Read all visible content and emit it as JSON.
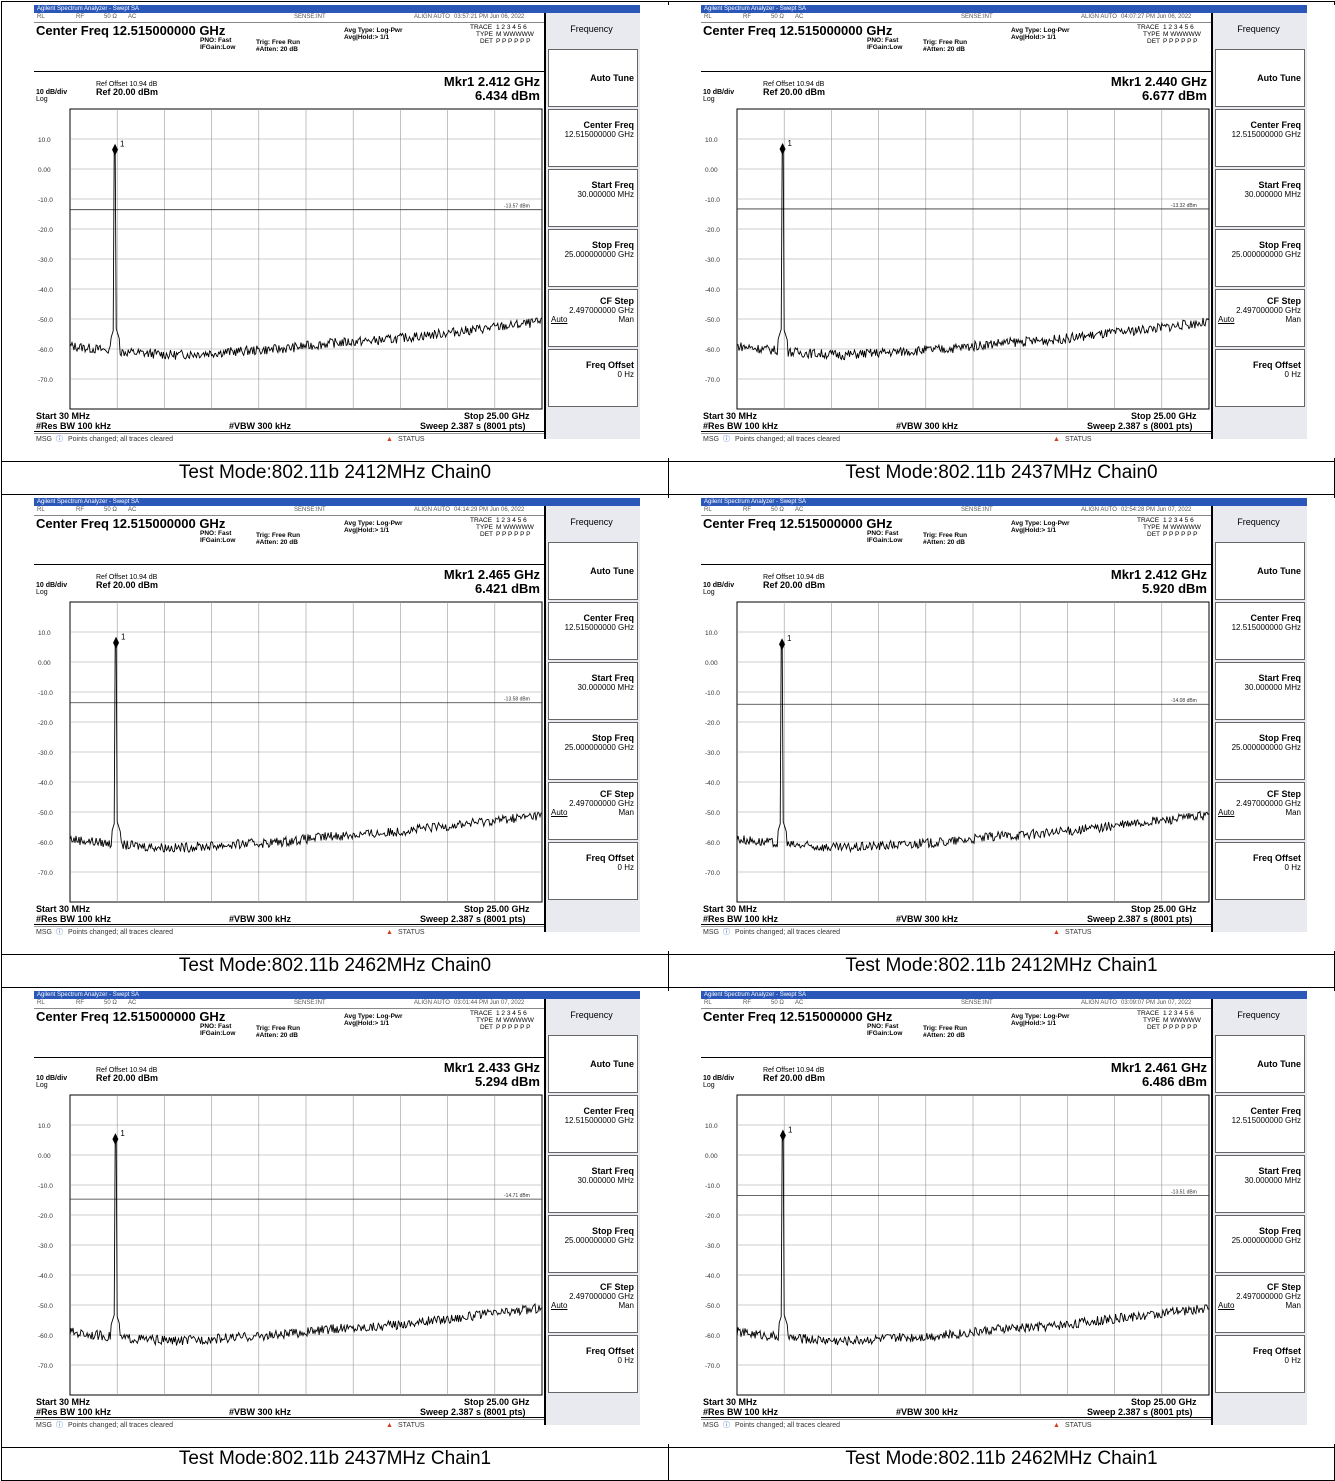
{
  "window_title": "Agilent Spectrum Analyzer - Swept SA",
  "status": {
    "rl": "RL",
    "rf": "RF",
    "impedance": "50 Ω",
    "coupling": "AC",
    "sense": "SENSE:INT",
    "align": "ALIGN AUTO"
  },
  "center_freq": "Center Freq 12.515000000 GHz",
  "pno": "PNO: Fast",
  "ifgain": "IFGain:Low",
  "trig": "Trig: Free Run",
  "atten": "#Atten: 20 dB",
  "avg_type": "Avg Type: Log-Pwr",
  "avg_hold": "Avg|Hold:> 1/1",
  "trace_label": "TRACE",
  "trace_nums": "1 2 3 4 5 6",
  "type_label": "TYPE",
  "type_val": "M WWWWW",
  "det_label": "DET",
  "det_val": "P P P P P P",
  "ref_offset": "Ref Offset 10.94 dB",
  "scale": "10 dB/div",
  "ref_level": "Ref 20.00 dBm",
  "log": "Log",
  "y_ticks": [
    "10.0",
    "0.00",
    "-10.0",
    "-20.0",
    "-30.0",
    "-40.0",
    "-50.0",
    "-60.0",
    "-70.0"
  ],
  "start": "Start 30 MHz",
  "res_bw": "#Res BW 100 kHz",
  "vbw": "#VBW 300 kHz",
  "stop": "Stop 25.00 GHz",
  "sweep": "Sweep  2.387 s (8001 pts)",
  "msg": "MSG",
  "msg_text": "Points changed; all traces cleared",
  "status_text": "STATUS",
  "softkeys": {
    "menu_title": "Frequency",
    "auto_tune": "Auto Tune",
    "center": {
      "label": "Center Freq",
      "value": "12.515000000 GHz"
    },
    "start": {
      "label": "Start Freq",
      "value": "30.000000 MHz"
    },
    "stop": {
      "label": "Stop Freq",
      "value": "25.000000000 GHz"
    },
    "cf_step": {
      "label": "CF Step",
      "value": "2.497000000 GHz",
      "auto": "Auto",
      "man": "Man"
    },
    "freq_offset": {
      "label": "Freq Offset",
      "value": "0 Hz"
    }
  },
  "panels": [
    {
      "time": "03:57:21 PM Jun 06, 2022",
      "marker_freq": "Mkr1 2.412 GHz",
      "marker_level": "6.434 dBm",
      "limit": "-13.57 dBm",
      "caption": "Test Mode:802.11b 2412MHz Chain0",
      "chart_data": {
        "type": "line",
        "x_range_ghz": [
          0.03,
          25.0
        ],
        "y_range_dbm": [
          -80,
          20
        ],
        "marker": {
          "x_ghz": 2.412,
          "y_dbm": 6.434,
          "label": "1"
        },
        "limit_dbm": -13.57,
        "noise_floor_dbm": [
          -59,
          -61,
          -62,
          -61,
          -60,
          -58,
          -57,
          -55,
          -53,
          -51
        ]
      }
    },
    {
      "time": "04:07:27 PM Jun 06, 2022",
      "marker_freq": "Mkr1 2.440 GHz",
      "marker_level": "6.677 dBm",
      "limit": "-13.32 dBm",
      "caption": "Test Mode:802.11b 2437MHz Chain0",
      "chart_data": {
        "type": "line",
        "x_range_ghz": [
          0.03,
          25.0
        ],
        "y_range_dbm": [
          -80,
          20
        ],
        "marker": {
          "x_ghz": 2.44,
          "y_dbm": 6.677,
          "label": "1"
        },
        "limit_dbm": -13.32,
        "noise_floor_dbm": [
          -59,
          -61,
          -62,
          -61,
          -60,
          -58,
          -57,
          -55,
          -53,
          -51
        ]
      }
    },
    {
      "time": "04:14:29 PM Jun 06, 2022",
      "marker_freq": "Mkr1 2.465 GHz",
      "marker_level": "6.421 dBm",
      "limit": "-13.58 dBm",
      "caption": "Test Mode:802.11b 2462MHz Chain0",
      "chart_data": {
        "type": "line",
        "x_range_ghz": [
          0.03,
          25.0
        ],
        "y_range_dbm": [
          -80,
          20
        ],
        "marker": {
          "x_ghz": 2.465,
          "y_dbm": 6.421,
          "label": "1"
        },
        "limit_dbm": -13.58,
        "noise_floor_dbm": [
          -59,
          -61,
          -62,
          -61,
          -60,
          -58,
          -57,
          -55,
          -53,
          -51
        ]
      }
    },
    {
      "time": "02:54:28 PM Jun 07, 2022",
      "marker_freq": "Mkr1 2.412 GHz",
      "marker_level": "5.920 dBm",
      "limit": "-14.08 dBm",
      "caption": "Test Mode:802.11b 2412MHz Chain1",
      "chart_data": {
        "type": "line",
        "x_range_ghz": [
          0.03,
          25.0
        ],
        "y_range_dbm": [
          -80,
          20
        ],
        "marker": {
          "x_ghz": 2.412,
          "y_dbm": 5.92,
          "label": "1"
        },
        "limit_dbm": -14.08,
        "noise_floor_dbm": [
          -59,
          -61,
          -62,
          -61,
          -60,
          -58,
          -57,
          -55,
          -53,
          -51
        ]
      }
    },
    {
      "time": "03:01:44 PM Jun 07, 2022",
      "marker_freq": "Mkr1 2.433 GHz",
      "marker_level": "5.294 dBm",
      "limit": "-14.71 dBm",
      "caption": "Test Mode:802.11b 2437MHz Chain1",
      "chart_data": {
        "type": "line",
        "x_range_ghz": [
          0.03,
          25.0
        ],
        "y_range_dbm": [
          -80,
          20
        ],
        "marker": {
          "x_ghz": 2.433,
          "y_dbm": 5.294,
          "label": "1"
        },
        "limit_dbm": -14.71,
        "noise_floor_dbm": [
          -59,
          -61,
          -62,
          -61,
          -60,
          -58,
          -57,
          -55,
          -53,
          -51
        ]
      }
    },
    {
      "time": "03:09:07 PM Jun 07, 2022",
      "marker_freq": "Mkr1 2.461 GHz",
      "marker_level": "6.486 dBm",
      "limit": "-13.51 dBm",
      "caption": "Test Mode:802.11b 2462MHz Chain1",
      "chart_data": {
        "type": "line",
        "x_range_ghz": [
          0.03,
          25.0
        ],
        "y_range_dbm": [
          -80,
          20
        ],
        "marker": {
          "x_ghz": 2.461,
          "y_dbm": 6.486,
          "label": "1"
        },
        "limit_dbm": -13.51,
        "noise_floor_dbm": [
          -59,
          -61,
          -62,
          -61,
          -60,
          -58,
          -57,
          -55,
          -53,
          -51
        ]
      }
    }
  ]
}
